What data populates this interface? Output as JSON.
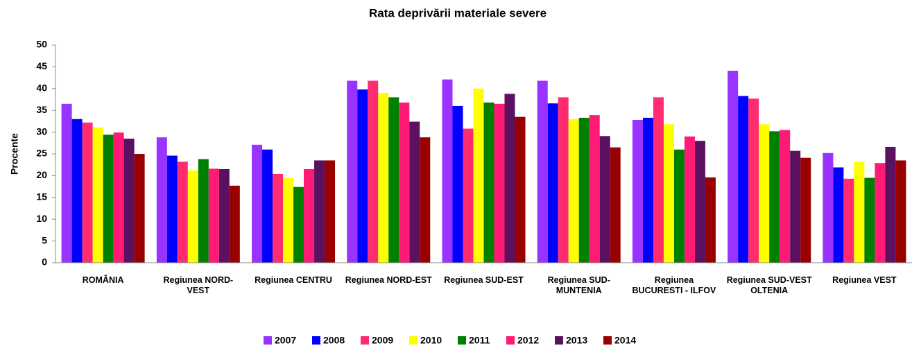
{
  "chart_data": {
    "type": "bar",
    "title": "Rata deprivării materiale severe",
    "y_label": "Procente",
    "categories": [
      "ROMÂNIA",
      "Regiunea NORD-VEST",
      "Regiunea CENTRU",
      "Regiunea NORD-EST",
      "Regiunea SUD-EST",
      "Regiunea SUD-MUNTENIA",
      "Regiunea BUCURESTI - ILFOV",
      "Regiunea SUD-VEST OLTENIA",
      "Regiunea VEST"
    ],
    "series": [
      {
        "name": "2007",
        "color": "#9933ff",
        "values": [
          36.5,
          28.8,
          27.1,
          41.8,
          42.1,
          41.8,
          32.8,
          44.1,
          25.2
        ]
      },
      {
        "name": "2008",
        "color": "#0000ff",
        "values": [
          33,
          24.6,
          26,
          39.8,
          36,
          36.6,
          33.3,
          38.3,
          21.9
        ]
      },
      {
        "name": "2009",
        "color": "#ff2d6f",
        "values": [
          32.2,
          23.2,
          20.4,
          41.8,
          30.8,
          38,
          38,
          37.7,
          19.3
        ]
      },
      {
        "name": "2010",
        "color": "#ffff00",
        "values": [
          31.1,
          21.2,
          19.5,
          39,
          40,
          33,
          31.8,
          31.8,
          23.2
        ]
      },
      {
        "name": "2011",
        "color": "#008000",
        "values": [
          29.4,
          23.8,
          17.4,
          38,
          36.8,
          33.3,
          26,
          30.2,
          19.5
        ]
      },
      {
        "name": "2012",
        "color": "#ff1a75",
        "values": [
          29.9,
          21.6,
          21.5,
          36.8,
          36.5,
          33.9,
          29,
          30.5,
          22.9
        ]
      },
      {
        "name": "2013",
        "color": "#5c1060",
        "values": [
          28.5,
          21.5,
          23.5,
          32.4,
          38.8,
          29.1,
          28,
          25.7,
          26.6
        ]
      },
      {
        "name": "2014",
        "color": "#990000",
        "values": [
          25,
          17.7,
          23.5,
          28.8,
          33.5,
          26.5,
          19.6,
          24.1,
          23.5
        ]
      }
    ],
    "ylim": [
      0,
      50
    ],
    "yticks": [
      0,
      5,
      10,
      15,
      20,
      25,
      30,
      35,
      40,
      45,
      50
    ],
    "grid": false,
    "legend": "bottom"
  }
}
